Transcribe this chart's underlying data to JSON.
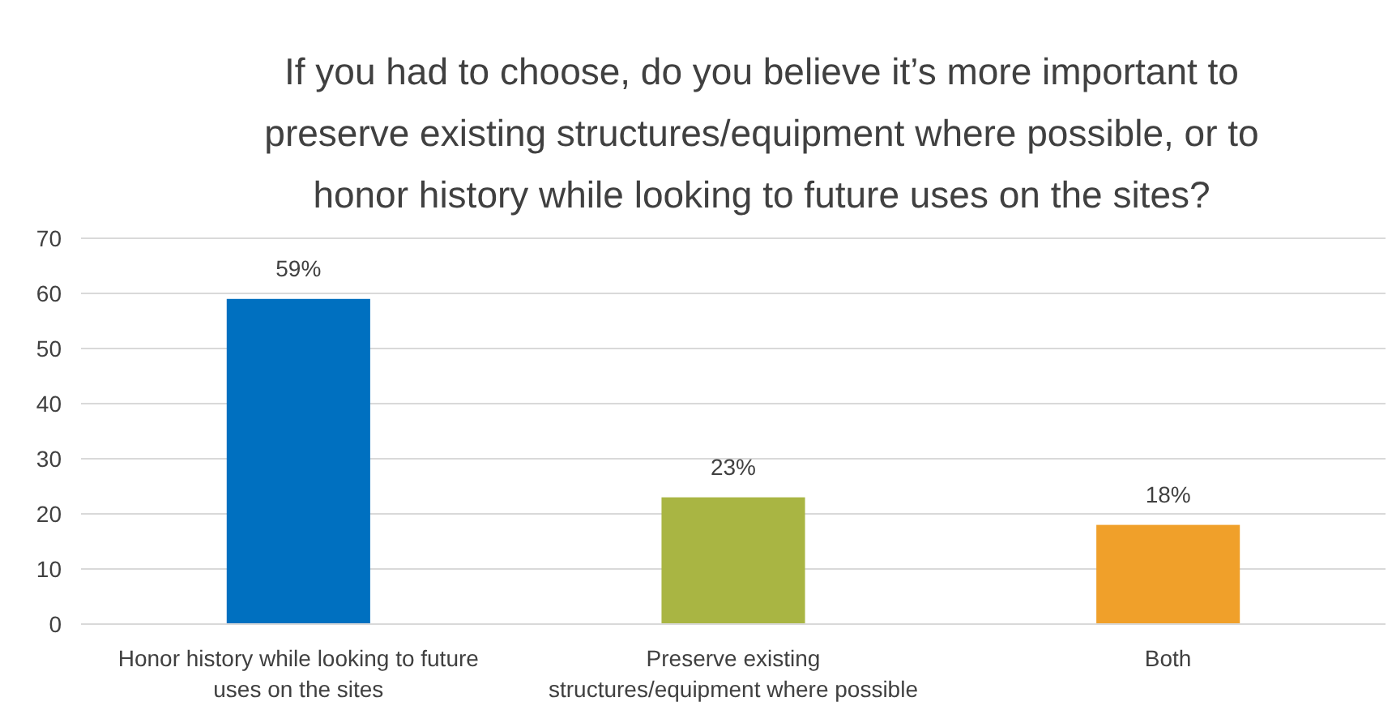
{
  "chart_data": {
    "type": "bar",
    "title": "If you had to choose, do you believe it’s more important to preserve existing structures/equipment where possible, or to honor history while looking to future uses on the sites?",
    "categories": [
      "Honor history while looking to future uses on the sites",
      "Preserve existing structures/equipment where possible",
      "Both"
    ],
    "values": [
      59,
      23,
      18
    ],
    "colors": [
      "#0070c0",
      "#a9b543",
      "#f0a02a"
    ],
    "value_labels": [
      "59%",
      "23%",
      "18%"
    ],
    "ylim": [
      0,
      70
    ],
    "yticks": [
      0,
      10,
      20,
      30,
      40,
      50,
      60,
      70
    ],
    "grid": "y"
  }
}
